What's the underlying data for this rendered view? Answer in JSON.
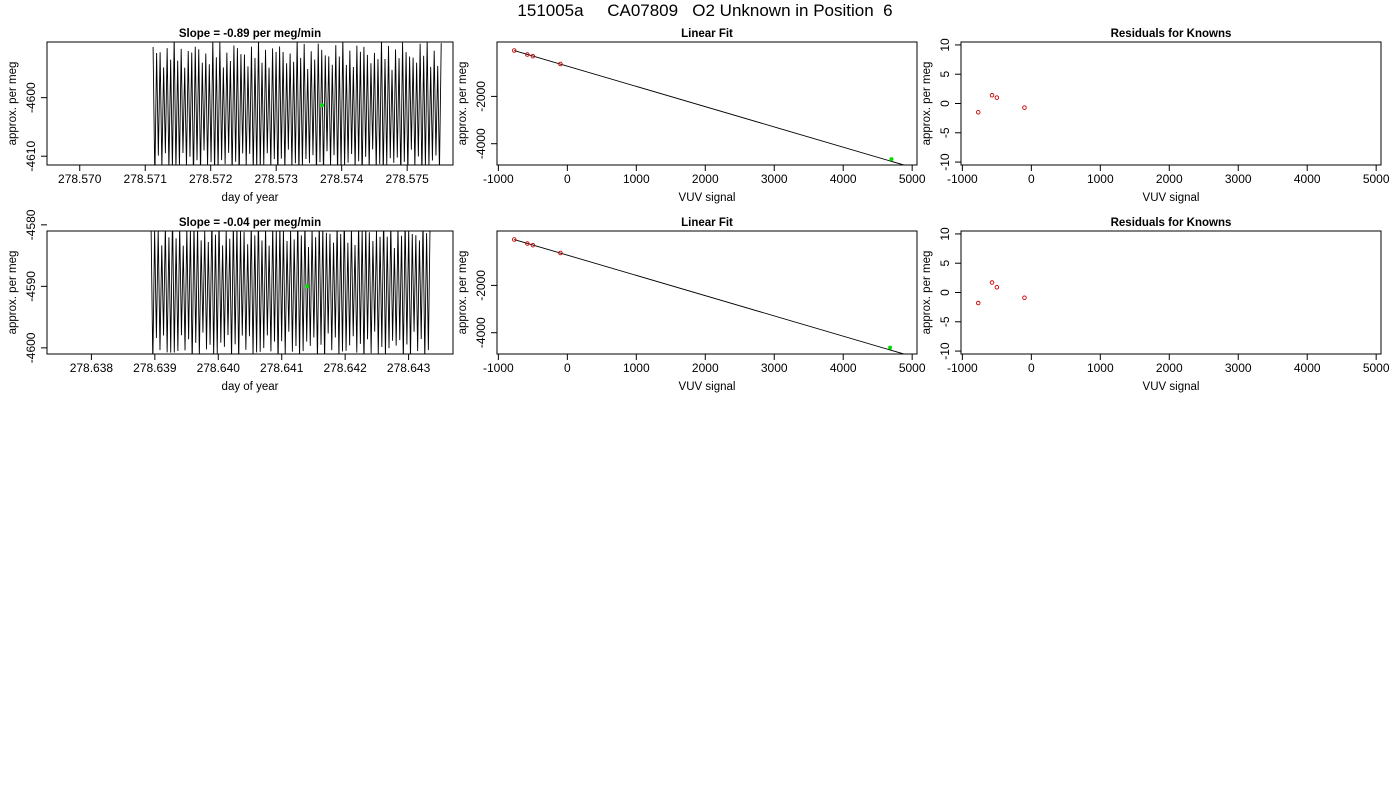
{
  "page": {
    "title": "151005a     CA07809   O2 Unknown in Position  6"
  },
  "chart_data": [
    {
      "id": "trace-1",
      "type": "line",
      "title": "Slope =  -0.89  per meg/min",
      "xlabel": "day of year",
      "ylabel": "approx. per meg",
      "xlim": [
        278.5695,
        278.5757
      ],
      "ylim": [
        -4611.5,
        -4590.5
      ],
      "xticks": [
        "278.570",
        "278.571",
        "278.572",
        "278.573",
        "278.574",
        "278.575"
      ],
      "yticks": [
        "-4600",
        "-4610"
      ],
      "trace": {
        "x_start": 278.57112,
        "x_end": 278.57552,
        "cycles": 82,
        "center": -4602,
        "amplitude": 9.5,
        "color": "#000000"
      },
      "marker": {
        "x": 278.5737,
        "y": -4601.3,
        "color": "#00dd00"
      }
    },
    {
      "id": "fit-1",
      "type": "scatter",
      "title": "Linear Fit",
      "xlabel": "VUV signal",
      "ylabel": "approx. per meg",
      "xlim": [
        -1020,
        5070
      ],
      "ylim": [
        -4900,
        300
      ],
      "xticks": [
        "-1000",
        "0",
        "1000",
        "2000",
        "3000",
        "4000",
        "5000"
      ],
      "yticks": [
        "-2000",
        "-4000"
      ],
      "line": {
        "x": [
          -770,
          4890
        ],
        "y": [
          -60,
          -4910
        ],
        "color": "#000000"
      },
      "points": {
        "x": [
          -770,
          -580,
          -500,
          -100
        ],
        "y": [
          -60,
          -230,
          -300,
          -630
        ],
        "color": "#cc0000"
      },
      "unknown": {
        "x": 4700,
        "y": -4650,
        "color": "#00dd00"
      }
    },
    {
      "id": "resid-1",
      "type": "scatter",
      "title": "Residuals for Knowns",
      "xlabel": "VUV signal",
      "ylabel": "approx. per meg",
      "xlim": [
        -1020,
        5070
      ],
      "ylim": [
        -10.5,
        10.5
      ],
      "xticks": [
        "-1000",
        "0",
        "1000",
        "2000",
        "3000",
        "4000",
        "5000"
      ],
      "yticks": [
        "10",
        "5",
        "0",
        "-5",
        "-10"
      ],
      "points": {
        "x": [
          -770,
          -570,
          -500,
          -100
        ],
        "y": [
          -1.5,
          1.4,
          1.0,
          -0.7
        ],
        "color": "#cc0000"
      }
    },
    {
      "id": "trace-2",
      "type": "line",
      "title": "Slope =  -0.04  per meg/min",
      "xlabel": "day of year",
      "ylabel": "approx. per meg",
      "xlim": [
        278.6373,
        278.6437
      ],
      "ylim": [
        -4601,
        -4581
      ],
      "xticks": [
        "278.638",
        "278.639",
        "278.640",
        "278.641",
        "278.642",
        "278.643"
      ],
      "yticks": [
        "-4580",
        "-4590",
        "-4600"
      ],
      "trace": {
        "x_start": 278.63894,
        "x_end": 278.64334,
        "cycles": 78,
        "center": -4590.5,
        "amplitude": 9.5,
        "color": "#000000"
      },
      "marker": {
        "x": 278.6414,
        "y": -4590,
        "color": "#00dd00"
      }
    },
    {
      "id": "fit-2",
      "type": "scatter",
      "title": "Linear Fit",
      "xlabel": "VUV signal",
      "ylabel": "approx. per meg",
      "xlim": [
        -1020,
        5070
      ],
      "ylim": [
        -4900,
        300
      ],
      "xticks": [
        "-1000",
        "0",
        "1000",
        "2000",
        "3000",
        "4000",
        "5000"
      ],
      "yticks": [
        "-2000",
        "-4000"
      ],
      "line": {
        "x": [
          -770,
          4890
        ],
        "y": [
          -60,
          -4910
        ],
        "color": "#000000"
      },
      "points": {
        "x": [
          -770,
          -580,
          -500,
          -100
        ],
        "y": [
          -60,
          -230,
          -300,
          -630
        ],
        "color": "#cc0000"
      },
      "unknown": {
        "x": 4680,
        "y": -4630,
        "color": "#00dd00"
      }
    },
    {
      "id": "resid-2",
      "type": "scatter",
      "title": "Residuals for Knowns",
      "xlabel": "VUV signal",
      "ylabel": "approx. per meg",
      "xlim": [
        -1020,
        5070
      ],
      "ylim": [
        -10.5,
        10.5
      ],
      "xticks": [
        "-1000",
        "0",
        "1000",
        "2000",
        "3000",
        "4000",
        "5000"
      ],
      "yticks": [
        "10",
        "5",
        "0",
        "-5",
        "-10"
      ],
      "points": {
        "x": [
          -770,
          -570,
          -500,
          -100
        ],
        "y": [
          -1.8,
          1.7,
          0.9,
          -0.9
        ],
        "color": "#cc0000"
      }
    }
  ]
}
